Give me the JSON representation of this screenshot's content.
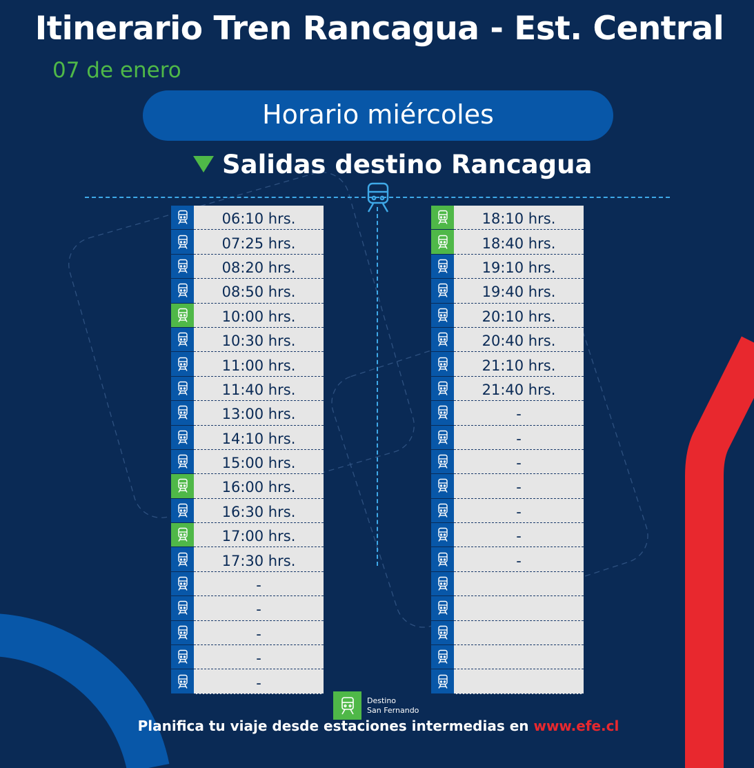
{
  "header": {
    "title": "Itinerario Tren Rancagua - Est. Central",
    "date": "07 de enero"
  },
  "schedule_label": "Horario miércoles",
  "direction_label": "Salidas destino Rancagua",
  "colors": {
    "background": "#0a2a55",
    "accent_green": "#4fb848",
    "accent_blue": "#0857a8",
    "accent_red": "#e8282e",
    "dashed_line": "#3fa9e8"
  },
  "left_column": [
    {
      "time": "06:10 hrs.",
      "san_fernando": false
    },
    {
      "time": "07:25 hrs.",
      "san_fernando": false
    },
    {
      "time": "08:20 hrs.",
      "san_fernando": false
    },
    {
      "time": "08:50 hrs.",
      "san_fernando": false
    },
    {
      "time": "10:00 hrs.",
      "san_fernando": true
    },
    {
      "time": "10:30 hrs.",
      "san_fernando": false
    },
    {
      "time": "11:00 hrs.",
      "san_fernando": false
    },
    {
      "time": "11:40 hrs.",
      "san_fernando": false
    },
    {
      "time": "13:00 hrs.",
      "san_fernando": false
    },
    {
      "time": "14:10 hrs.",
      "san_fernando": false
    },
    {
      "time": "15:00 hrs.",
      "san_fernando": false
    },
    {
      "time": "16:00 hrs.",
      "san_fernando": true
    },
    {
      "time": "16:30 hrs.",
      "san_fernando": false
    },
    {
      "time": "17:00 hrs.",
      "san_fernando": true
    },
    {
      "time": "17:30 hrs.",
      "san_fernando": false
    },
    {
      "time": "-",
      "san_fernando": false
    },
    {
      "time": "-",
      "san_fernando": false
    },
    {
      "time": "-",
      "san_fernando": false
    },
    {
      "time": "-",
      "san_fernando": false
    },
    {
      "time": "-",
      "san_fernando": false
    }
  ],
  "right_column": [
    {
      "time": "18:10 hrs.",
      "san_fernando": true
    },
    {
      "time": "18:40 hrs.",
      "san_fernando": true
    },
    {
      "time": "19:10 hrs.",
      "san_fernando": false
    },
    {
      "time": "19:40 hrs.",
      "san_fernando": false
    },
    {
      "time": "20:10 hrs.",
      "san_fernando": false
    },
    {
      "time": "20:40 hrs.",
      "san_fernando": false
    },
    {
      "time": "21:10 hrs.",
      "san_fernando": false
    },
    {
      "time": "21:40 hrs.",
      "san_fernando": false
    },
    {
      "time": "-",
      "san_fernando": false
    },
    {
      "time": "-",
      "san_fernando": false
    },
    {
      "time": "-",
      "san_fernando": false
    },
    {
      "time": "-",
      "san_fernando": false
    },
    {
      "time": "-",
      "san_fernando": false
    },
    {
      "time": "-",
      "san_fernando": false
    },
    {
      "time": "-",
      "san_fernando": false
    },
    {
      "time": "",
      "san_fernando": false
    },
    {
      "time": "",
      "san_fernando": false
    },
    {
      "time": "",
      "san_fernando": false
    },
    {
      "time": "",
      "san_fernando": false
    },
    {
      "time": "",
      "san_fernando": false
    }
  ],
  "legend": {
    "line1": "Destino",
    "line2": "San Fernando",
    "icon": "train-icon"
  },
  "footer": {
    "text": "Planifica tu viaje desde estaciones intermedias en ",
    "link": "www.efe.cl"
  }
}
